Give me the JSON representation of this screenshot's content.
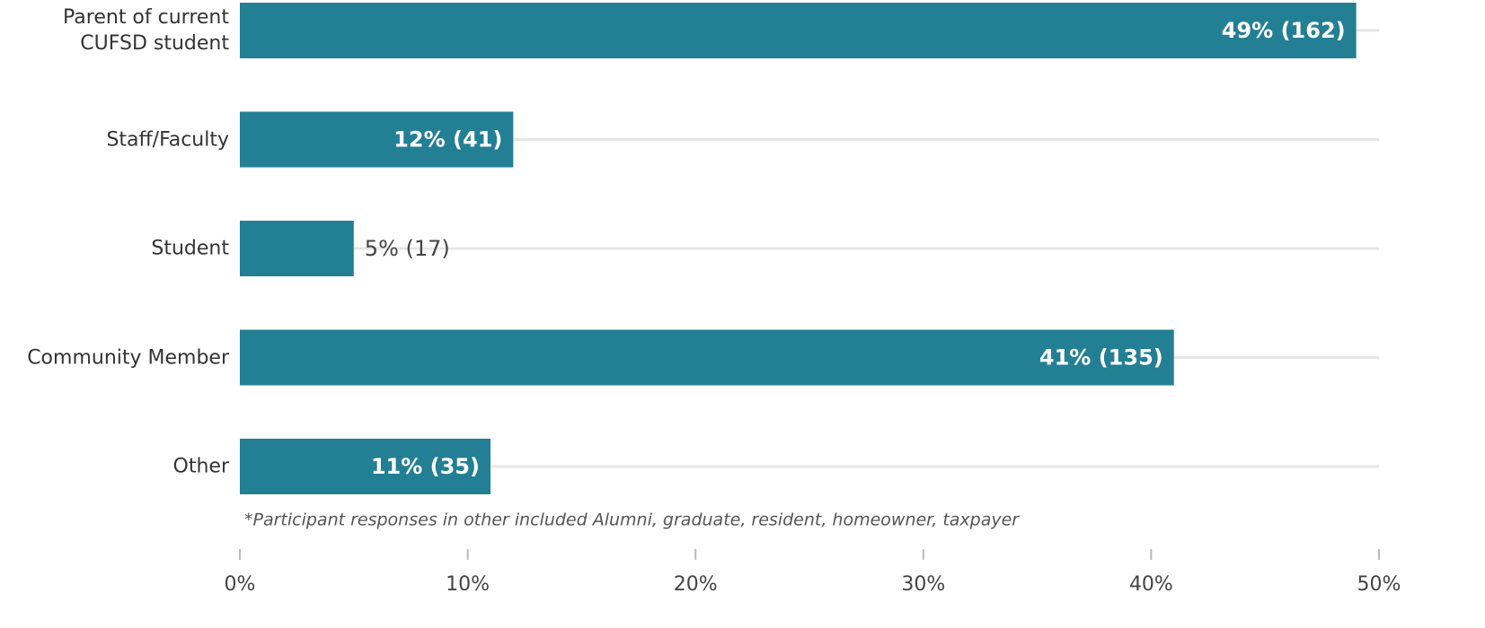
{
  "chart_data": {
    "type": "bar",
    "orientation": "horizontal",
    "categories": [
      "Parent of current CUFSD student",
      "Staff/Faculty",
      "Student",
      "Community Member",
      "Other"
    ],
    "values": [
      49,
      12,
      5,
      41,
      11
    ],
    "value_labels": [
      "49% (162)",
      "12% (41)",
      "5% (17)",
      "41% (135)",
      "11% (35)"
    ],
    "color": "#237f94",
    "xlim": [
      0,
      50
    ],
    "xticks": [
      {
        "value": 0,
        "label": "0%"
      },
      {
        "value": 10,
        "label": "10%"
      },
      {
        "value": 20,
        "label": "20%"
      },
      {
        "value": 30,
        "label": "30%"
      },
      {
        "value": 40,
        "label": "40%"
      },
      {
        "value": 50,
        "label": "50%"
      }
    ],
    "grid": true,
    "annotation": "*Participant responses  in other included Alumni, graduate, resident, homeowner, taxpayer"
  }
}
